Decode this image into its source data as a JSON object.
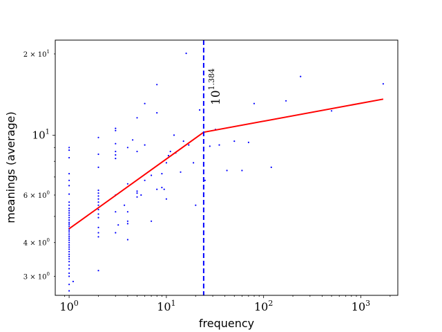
{
  "chart_data": {
    "type": "scatter",
    "xlabel": "frequency",
    "ylabel": "meanings (average)",
    "x_scale": "log",
    "y_scale": "log",
    "xlim": [
      0.72,
      2400
    ],
    "ylim": [
      2.55,
      22.5
    ],
    "x_ticks": [
      {
        "value": 1,
        "mantissa": "10",
        "exp": "0"
      },
      {
        "value": 10,
        "mantissa": "10",
        "exp": "1"
      },
      {
        "value": 100,
        "mantissa": "10",
        "exp": "2"
      },
      {
        "value": 1000,
        "mantissa": "10",
        "exp": "3"
      }
    ],
    "y_ticks": [
      {
        "value": 3,
        "text": "3 × 10",
        "exp": "0",
        "size": 10
      },
      {
        "value": 4,
        "text": "4 × 10",
        "exp": "0",
        "size": 10
      },
      {
        "value": 6,
        "text": "6 × 10",
        "exp": "0",
        "size": 10
      },
      {
        "value": 10,
        "text": "10",
        "exp": "1",
        "size": 15
      },
      {
        "value": 20,
        "text": "2 × 10",
        "exp": "1",
        "size": 10
      }
    ],
    "fit_line": {
      "color": "#ff0000",
      "points": [
        [
          1,
          4.5
        ],
        [
          24.2,
          10.25
        ],
        [
          1700,
          13.6
        ]
      ]
    },
    "breakpoint": {
      "x": 24.2,
      "color": "#0000ff",
      "label_base": "10",
      "label_exp": "1.384"
    },
    "point_color": "#0000ff",
    "points": [
      [
        1,
        2.65
      ],
      [
        1,
        2.8
      ],
      [
        1.1,
        2.87
      ],
      [
        1,
        3.0
      ],
      [
        1,
        3.08
      ],
      [
        1,
        3.2
      ],
      [
        1,
        3.3
      ],
      [
        1,
        3.4
      ],
      [
        1,
        3.48
      ],
      [
        1,
        3.55
      ],
      [
        1,
        3.62
      ],
      [
        1,
        3.7
      ],
      [
        1,
        3.78
      ],
      [
        1,
        3.85
      ],
      [
        1,
        3.92
      ],
      [
        1,
        4.0
      ],
      [
        1,
        4.08
      ],
      [
        1,
        4.15
      ],
      [
        1,
        4.22
      ],
      [
        1,
        4.3
      ],
      [
        1,
        4.38
      ],
      [
        1,
        4.45
      ],
      [
        1,
        4.52
      ],
      [
        1,
        4.6
      ],
      [
        1,
        4.68
      ],
      [
        1,
        4.75
      ],
      [
        1,
        4.85
      ],
      [
        1,
        4.95
      ],
      [
        1,
        5.05
      ],
      [
        1,
        5.15
      ],
      [
        1,
        5.25
      ],
      [
        1,
        5.35
      ],
      [
        1,
        5.5
      ],
      [
        1,
        5.65
      ],
      [
        1,
        6.05
      ],
      [
        1,
        6.5
      ],
      [
        1,
        6.8
      ],
      [
        1,
        7.2
      ],
      [
        1,
        8.25
      ],
      [
        1,
        8.8
      ],
      [
        1,
        9.0
      ],
      [
        2,
        3.15
      ],
      [
        2,
        4.2
      ],
      [
        2,
        4.35
      ],
      [
        2,
        4.55
      ],
      [
        2,
        4.95
      ],
      [
        2,
        5.1
      ],
      [
        2,
        5.3
      ],
      [
        2,
        5.5
      ],
      [
        2,
        5.65
      ],
      [
        2,
        5.8
      ],
      [
        2,
        5.95
      ],
      [
        2,
        6.1
      ],
      [
        2,
        6.25
      ],
      [
        2,
        7.6
      ],
      [
        2,
        8.5
      ],
      [
        2,
        9.8
      ],
      [
        3,
        4.35
      ],
      [
        3,
        5.2
      ],
      [
        3,
        6.0
      ],
      [
        3,
        8.2
      ],
      [
        3,
        8.45
      ],
      [
        3,
        8.7
      ],
      [
        3,
        9.3
      ],
      [
        3,
        10.4
      ],
      [
        3,
        10.6
      ],
      [
        3.2,
        4.65
      ],
      [
        3.7,
        5.5
      ],
      [
        4,
        4.1
      ],
      [
        4,
        4.7
      ],
      [
        4,
        4.8
      ],
      [
        4,
        5.2
      ],
      [
        4,
        6.6
      ],
      [
        4,
        9.0
      ],
      [
        4.5,
        9.6
      ],
      [
        5,
        5.9
      ],
      [
        5,
        6.1
      ],
      [
        5,
        6.2
      ],
      [
        5,
        8.7
      ],
      [
        5,
        11.6
      ],
      [
        5.5,
        6.0
      ],
      [
        6,
        6.8
      ],
      [
        6,
        9.2
      ],
      [
        6,
        13.1
      ],
      [
        7,
        4.8
      ],
      [
        7,
        7.1
      ],
      [
        8,
        6.3
      ],
      [
        8,
        12.1
      ],
      [
        8,
        15.4
      ],
      [
        9,
        6.4
      ],
      [
        9,
        7.2
      ],
      [
        9.5,
        6.3
      ],
      [
        10,
        5.8
      ],
      [
        10,
        7.9
      ],
      [
        10.5,
        8.4
      ],
      [
        11,
        8.7
      ],
      [
        12,
        10.0
      ],
      [
        12.5,
        8.6
      ],
      [
        14,
        7.3
      ],
      [
        15,
        9.5
      ],
      [
        16,
        20.1
      ],
      [
        17,
        9.2
      ],
      [
        19,
        7.9
      ],
      [
        20,
        5.5
      ],
      [
        22,
        12.4
      ],
      [
        25,
        6.8
      ],
      [
        28,
        9.1
      ],
      [
        32,
        10.5
      ],
      [
        35,
        9.2
      ],
      [
        42,
        7.4
      ],
      [
        50,
        9.5
      ],
      [
        60,
        7.4
      ],
      [
        70,
        9.4
      ],
      [
        80,
        13.1
      ],
      [
        120,
        7.6
      ],
      [
        170,
        13.4
      ],
      [
        240,
        16.5
      ],
      [
        500,
        12.3
      ],
      [
        1700,
        15.5
      ]
    ]
  }
}
